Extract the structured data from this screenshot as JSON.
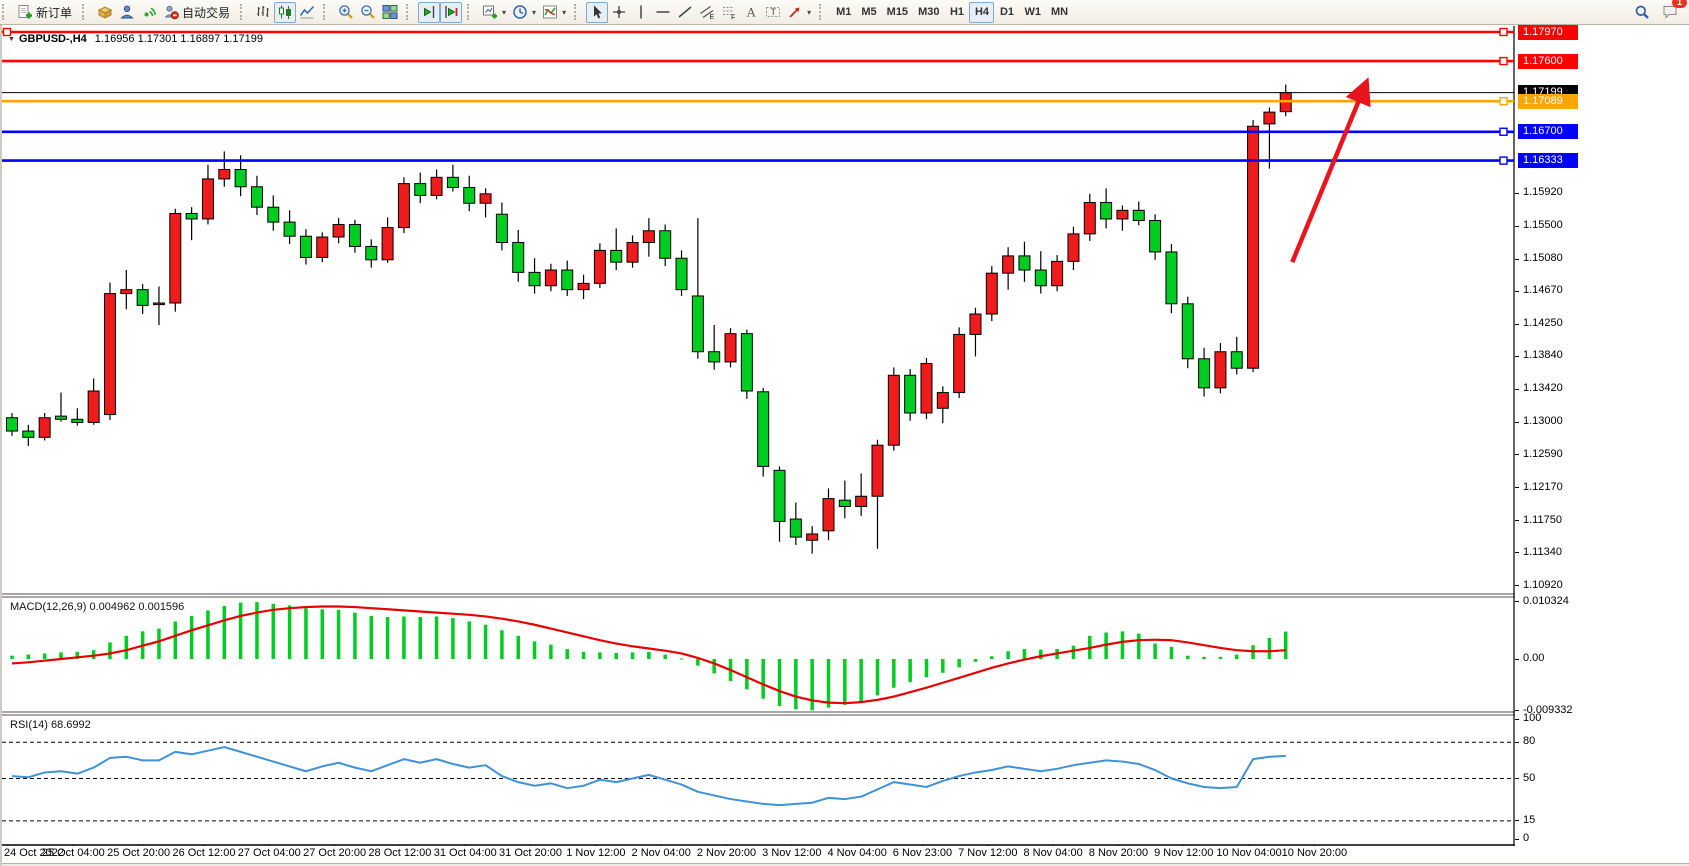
{
  "toolbar": {
    "groups": [
      {
        "items": [
          {
            "name": "new-order",
            "label": "新订单"
          }
        ]
      },
      {
        "items": [
          {
            "name": "profile"
          },
          {
            "name": "community"
          },
          {
            "name": "signals"
          },
          {
            "name": "autotrade",
            "label": "自动交易"
          }
        ]
      },
      {
        "items": [
          {
            "name": "chart-bars"
          },
          {
            "name": "chart-candles",
            "active": true
          },
          {
            "name": "chart-line"
          }
        ]
      },
      {
        "items": [
          {
            "name": "zoom-in"
          },
          {
            "name": "zoom-out"
          },
          {
            "name": "tile-windows"
          }
        ]
      },
      {
        "items": [
          {
            "name": "shift-end",
            "active": true
          },
          {
            "name": "auto-scroll",
            "active": true
          }
        ]
      },
      {
        "items": [
          {
            "name": "new-chart",
            "dropdown": true
          },
          {
            "name": "periods-clock",
            "dropdown": true
          },
          {
            "name": "indicators",
            "dropdown": true
          }
        ]
      },
      {
        "items": [
          {
            "name": "cursor",
            "active": true
          },
          {
            "name": "crosshair"
          },
          {
            "name": "vline"
          },
          {
            "name": "hline"
          },
          {
            "name": "trendline"
          },
          {
            "name": "channel"
          },
          {
            "name": "fibonacci"
          },
          {
            "name": "text"
          },
          {
            "name": "label"
          },
          {
            "name": "arrows",
            "dropdown": true
          }
        ]
      },
      {
        "items": [
          {
            "name": "tf-m1",
            "label": "M1",
            "tf": true
          },
          {
            "name": "tf-m5",
            "label": "M5",
            "tf": true
          },
          {
            "name": "tf-m15",
            "label": "M15",
            "tf": true
          },
          {
            "name": "tf-m30",
            "label": "M30",
            "tf": true
          },
          {
            "name": "tf-h1",
            "label": "H1",
            "tf": true
          },
          {
            "name": "tf-h4",
            "label": "H4",
            "tf": true,
            "active": true
          },
          {
            "name": "tf-d1",
            "label": "D1",
            "tf": true
          },
          {
            "name": "tf-w1",
            "label": "W1",
            "tf": true
          },
          {
            "name": "tf-mn",
            "label": "MN",
            "tf": true
          }
        ]
      }
    ],
    "right": [
      {
        "name": "search"
      },
      {
        "name": "comment",
        "badge": "1"
      }
    ]
  },
  "chart_data": {
    "type": "candlestick",
    "title": "GBPUSD-,H4",
    "ohlc_line": "1.16956 1.17301 1.16897 1.17199",
    "collapse_marker": "▼",
    "x_labels": [
      "24 Oct 2022",
      "25 Oct 04:00",
      "25 Oct 20:00",
      "26 Oct 12:00",
      "27 Oct 04:00",
      "27 Oct 20:00",
      "28 Oct 12:00",
      "31 Oct 04:00",
      "31 Oct 20:00",
      "1 Nov 12:00",
      "2 Nov 04:00",
      "2 Nov 20:00",
      "3 Nov 12:00",
      "4 Nov 04:00",
      "6 Nov 23:00",
      "7 Nov 12:00",
      "8 Nov 04:00",
      "8 Nov 20:00",
      "9 Nov 12:00",
      "10 Nov 04:00",
      "10 Nov 20:00"
    ],
    "price_ticks": [
      "1.15920",
      "1.15500",
      "1.15080",
      "1.14670",
      "1.14250",
      "1.13840",
      "1.13420",
      "1.13000",
      "1.12590",
      "1.12170",
      "1.11750",
      "1.11340",
      "1.10920"
    ],
    "colors": {
      "up": "#ee1c1c",
      "down": "#00cd22",
      "wick": "#000000",
      "macd_hist": "#00cd22",
      "macd_signal": "#e60000",
      "rsi": "#3f92d8",
      "current": "#000000"
    },
    "hlines": [
      {
        "price": 1.1797,
        "label": "1.17970",
        "color": "#ff0000",
        "left_handle": true
      },
      {
        "price": 1.176,
        "label": "1.17600",
        "color": "#ff0000"
      },
      {
        "price": 1.17089,
        "label": "1.17089",
        "color": "#ffa500"
      },
      {
        "price": 1.167,
        "label": "1.16700",
        "color": "#0000ff"
      },
      {
        "price": 1.16333,
        "label": "1.16333",
        "color": "#0000ff"
      }
    ],
    "current_price": {
      "value": 1.17199,
      "label": "1.17199"
    },
    "candles": [
      [
        1.1306,
        1.1312,
        1.1283,
        1.1289
      ],
      [
        1.1289,
        1.1297,
        1.127,
        1.1281
      ],
      [
        1.1281,
        1.1312,
        1.1277,
        1.1306
      ],
      [
        1.1308,
        1.1338,
        1.1301,
        1.1304
      ],
      [
        1.1304,
        1.1318,
        1.1296,
        1.13
      ],
      [
        1.13,
        1.1356,
        1.1297,
        1.134
      ],
      [
        1.131,
        1.1478,
        1.1303,
        1.1464
      ],
      [
        1.1464,
        1.1494,
        1.1444,
        1.1469
      ],
      [
        1.1469,
        1.1476,
        1.1438,
        1.1449
      ],
      [
        1.145,
        1.1473,
        1.1424,
        1.1452
      ],
      [
        1.1452,
        1.1572,
        1.1441,
        1.1566
      ],
      [
        1.1566,
        1.1574,
        1.1532,
        1.1559
      ],
      [
        1.1559,
        1.1628,
        1.1552,
        1.161
      ],
      [
        1.161,
        1.1645,
        1.16,
        1.1622
      ],
      [
        1.1622,
        1.164,
        1.1588,
        1.16
      ],
      [
        1.16,
        1.1614,
        1.1564,
        1.1574
      ],
      [
        1.1574,
        1.1589,
        1.1544,
        1.1555
      ],
      [
        1.1555,
        1.157,
        1.1527,
        1.1537
      ],
      [
        1.1537,
        1.1546,
        1.1501,
        1.151
      ],
      [
        1.151,
        1.1542,
        1.1504,
        1.1536
      ],
      [
        1.1536,
        1.156,
        1.1528,
        1.1552
      ],
      [
        1.1552,
        1.1558,
        1.1516,
        1.1524
      ],
      [
        1.1524,
        1.1533,
        1.1497,
        1.1507
      ],
      [
        1.1507,
        1.1561,
        1.1503,
        1.1548
      ],
      [
        1.1548,
        1.1612,
        1.1541,
        1.1604
      ],
      [
        1.1604,
        1.1618,
        1.1579,
        1.1589
      ],
      [
        1.1589,
        1.1622,
        1.1584,
        1.1612
      ],
      [
        1.1612,
        1.1628,
        1.1594,
        1.1599
      ],
      [
        1.1599,
        1.1614,
        1.1569,
        1.1579
      ],
      [
        1.1579,
        1.1598,
        1.1561,
        1.1591
      ],
      [
        1.1565,
        1.158,
        1.1519,
        1.1529
      ],
      [
        1.1529,
        1.1545,
        1.1479,
        1.1491
      ],
      [
        1.1491,
        1.1509,
        1.1464,
        1.1474
      ],
      [
        1.1474,
        1.1502,
        1.1467,
        1.1494
      ],
      [
        1.1494,
        1.1506,
        1.1461,
        1.1469
      ],
      [
        1.1469,
        1.1488,
        1.1457,
        1.1477
      ],
      [
        1.1477,
        1.1528,
        1.1471,
        1.1519
      ],
      [
        1.1519,
        1.1547,
        1.1494,
        1.1504
      ],
      [
        1.1504,
        1.1538,
        1.1497,
        1.1529
      ],
      [
        1.1529,
        1.156,
        1.1511,
        1.1544
      ],
      [
        1.1544,
        1.1552,
        1.1499,
        1.1509
      ],
      [
        1.1509,
        1.1519,
        1.1461,
        1.1469
      ],
      [
        1.1461,
        1.156,
        1.1381,
        1.139
      ],
      [
        1.139,
        1.1424,
        1.1367,
        1.1377
      ],
      [
        1.1377,
        1.142,
        1.137,
        1.1413
      ],
      [
        1.1413,
        1.1418,
        1.133,
        1.134
      ],
      [
        1.1339,
        1.1344,
        1.1231,
        1.1244
      ],
      [
        1.1239,
        1.1244,
        1.1148,
        1.1174
      ],
      [
        1.1177,
        1.1198,
        1.1144,
        1.1154
      ],
      [
        1.115,
        1.1168,
        1.1133,
        1.1158
      ],
      [
        1.1162,
        1.1216,
        1.115,
        1.1203
      ],
      [
        1.1201,
        1.1226,
        1.1178,
        1.1193
      ],
      [
        1.1193,
        1.1235,
        1.1181,
        1.1206
      ],
      [
        1.1206,
        1.1278,
        1.1139,
        1.1271
      ],
      [
        1.1271,
        1.137,
        1.1264,
        1.136
      ],
      [
        1.136,
        1.1368,
        1.1302,
        1.1312
      ],
      [
        1.1312,
        1.1382,
        1.1304,
        1.1375
      ],
      [
        1.1318,
        1.1346,
        1.1299,
        1.1338
      ],
      [
        1.1338,
        1.1421,
        1.1331,
        1.1412
      ],
      [
        1.1412,
        1.1446,
        1.1384,
        1.1438
      ],
      [
        1.1438,
        1.1499,
        1.1429,
        1.149
      ],
      [
        1.149,
        1.1523,
        1.1469,
        1.1512
      ],
      [
        1.1512,
        1.153,
        1.1479,
        1.1494
      ],
      [
        1.1494,
        1.1518,
        1.1464,
        1.1474
      ],
      [
        1.1474,
        1.1513,
        1.1467,
        1.1505
      ],
      [
        1.1505,
        1.1549,
        1.1494,
        1.154
      ],
      [
        1.154,
        1.1591,
        1.1531,
        1.158
      ],
      [
        1.158,
        1.1598,
        1.1547,
        1.1559
      ],
      [
        1.1559,
        1.1576,
        1.1544,
        1.157
      ],
      [
        1.157,
        1.1581,
        1.1551,
        1.1557
      ],
      [
        1.1557,
        1.1565,
        1.1507,
        1.1517
      ],
      [
        1.1517,
        1.1527,
        1.1439,
        1.1451
      ],
      [
        1.1451,
        1.146,
        1.1369,
        1.1381
      ],
      [
        1.1381,
        1.1395,
        1.1333,
        1.1344
      ],
      [
        1.1344,
        1.1401,
        1.1337,
        1.139
      ],
      [
        1.139,
        1.1409,
        1.1361,
        1.1369
      ],
      [
        1.1369,
        1.1685,
        1.1364,
        1.1677
      ],
      [
        1.168,
        1.1701,
        1.1623,
        1.1695
      ],
      [
        1.16956,
        1.17301,
        1.16897,
        1.17199
      ]
    ],
    "macd": {
      "label": "MACD(12,26,9) 0.004962 0.001596",
      "value": 0.004962,
      "signal_value": 0.001596,
      "axis_labels": [
        "0.010324",
        "0.00",
        "-0.009332"
      ],
      "histogram": [
        0.0006,
        0.0008,
        0.001,
        0.0012,
        0.0013,
        0.0016,
        0.003,
        0.0042,
        0.005,
        0.0055,
        0.0068,
        0.0078,
        0.0088,
        0.0096,
        0.0102,
        0.0103,
        0.01,
        0.0097,
        0.0092,
        0.009,
        0.0089,
        0.0084,
        0.0078,
        0.0076,
        0.0077,
        0.0076,
        0.0077,
        0.0074,
        0.0068,
        0.0062,
        0.0052,
        0.0042,
        0.0032,
        0.0026,
        0.0018,
        0.0013,
        0.0012,
        0.0011,
        0.0012,
        0.0013,
        0.0008,
        0.0001,
        -0.0012,
        -0.0026,
        -0.004,
        -0.0055,
        -0.0072,
        -0.0085,
        -0.0091,
        -0.0093,
        -0.0088,
        -0.0083,
        -0.0078,
        -0.0066,
        -0.0052,
        -0.0042,
        -0.0033,
        -0.0025,
        -0.0015,
        -0.0005,
        0.0005,
        0.0014,
        0.0018,
        0.0017,
        0.0018,
        0.0024,
        0.0042,
        0.0048,
        0.005,
        0.0046,
        0.0028,
        0.0022,
        0.0006,
        0.0004,
        0.0004,
        0.0008,
        0.0025,
        0.0038,
        0.004962
      ],
      "signal": [
        -0.0008,
        -0.0006,
        -0.0003,
        0.0,
        0.0003,
        0.0006,
        0.001,
        0.0016,
        0.0024,
        0.0032,
        0.0042,
        0.0052,
        0.0061,
        0.007,
        0.0078,
        0.0084,
        0.0089,
        0.0092,
        0.0094,
        0.0095,
        0.0095,
        0.0094,
        0.0092,
        0.009,
        0.0088,
        0.0086,
        0.0084,
        0.0082,
        0.008,
        0.0077,
        0.0073,
        0.0068,
        0.0062,
        0.0055,
        0.0048,
        0.0041,
        0.0034,
        0.0028,
        0.0023,
        0.0019,
        0.0015,
        0.001,
        0.0002,
        -0.0008,
        -0.002,
        -0.0033,
        -0.0046,
        -0.0058,
        -0.0068,
        -0.0075,
        -0.0079,
        -0.008,
        -0.0078,
        -0.0074,
        -0.0068,
        -0.006,
        -0.0052,
        -0.0043,
        -0.0034,
        -0.0025,
        -0.0016,
        -0.0008,
        -0.0001,
        0.0005,
        0.001,
        0.0015,
        0.002,
        0.0026,
        0.0031,
        0.0034,
        0.0035,
        0.0034,
        0.003,
        0.0025,
        0.002,
        0.0016,
        0.0014,
        0.0014,
        0.001596
      ]
    },
    "rsi": {
      "label": "RSI(14) 68.6992",
      "value": 68.6992,
      "axis_labels": [
        "100",
        "80",
        "50",
        "15",
        "0"
      ],
      "levels": [
        80,
        50,
        15
      ],
      "values": [
        52,
        51,
        55,
        56,
        54,
        59,
        67,
        68,
        65,
        65,
        72,
        70,
        73,
        76,
        72,
        68,
        64,
        60,
        56,
        60,
        63,
        59,
        56,
        61,
        66,
        63,
        66,
        62,
        59,
        61,
        52,
        47,
        44,
        46,
        42,
        44,
        49,
        47,
        50,
        53,
        49,
        45,
        39,
        36,
        33,
        31,
        29,
        28,
        29,
        30,
        34,
        33,
        35,
        41,
        47,
        45,
        43,
        48,
        52,
        55,
        57,
        60,
        58,
        56,
        58,
        61,
        63,
        65,
        64,
        62,
        57,
        50,
        46,
        43,
        42,
        43,
        66,
        68,
        68.6992
      ]
    },
    "trend_arrow": {
      "from_index": 78.4,
      "from_price": 1.1504,
      "to_index": 82.9,
      "to_price": 1.1731,
      "color": "#e8151e"
    }
  }
}
